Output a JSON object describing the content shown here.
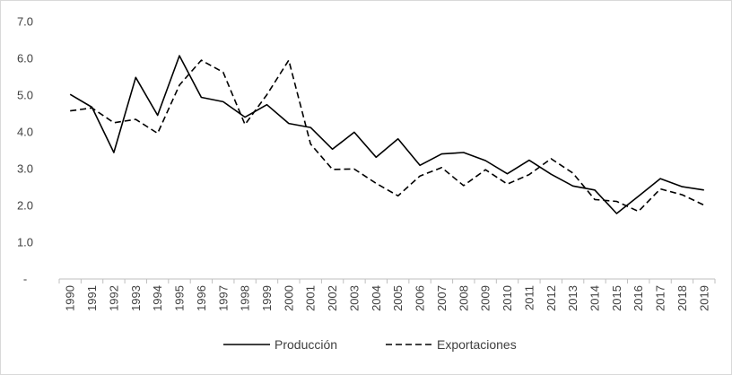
{
  "chart_data": {
    "type": "line",
    "title": "",
    "xlabel": "",
    "ylabel": "",
    "ylim": [
      0,
      7
    ],
    "y_ticks": [
      "-",
      "1.0",
      "2.0",
      "3.0",
      "4.0",
      "5.0",
      "6.0",
      "7.0"
    ],
    "grid": false,
    "legend_position": "bottom",
    "x": [
      "1990",
      "1991",
      "1992",
      "1993",
      "1994",
      "1995",
      "1996",
      "1997",
      "1998",
      "1999",
      "2000",
      "2001",
      "2002",
      "2003",
      "2004",
      "2005",
      "2006",
      "2007",
      "2008",
      "2009",
      "2010",
      "2011",
      "2012",
      "2013",
      "2014",
      "2015",
      "2016",
      "2017",
      "2018",
      "2019"
    ],
    "series": [
      {
        "name": "Producción",
        "style": "solid",
        "color": "#000000",
        "values": [
          5.02,
          4.67,
          3.44,
          5.48,
          4.45,
          6.07,
          4.94,
          4.82,
          4.4,
          4.74,
          4.23,
          4.12,
          3.53,
          3.99,
          3.31,
          3.81,
          3.09,
          3.4,
          3.44,
          3.22,
          2.86,
          3.23,
          2.85,
          2.53,
          2.42,
          1.78,
          2.25,
          2.73,
          2.51,
          2.42
        ]
      },
      {
        "name": "Exportaciones",
        "style": "dashed",
        "color": "#000000",
        "values": [
          4.57,
          4.65,
          4.25,
          4.34,
          3.96,
          5.27,
          5.95,
          5.62,
          4.2,
          5.01,
          5.95,
          3.67,
          2.98,
          2.99,
          2.6,
          2.26,
          2.8,
          3.03,
          2.54,
          2.97,
          2.58,
          2.84,
          3.27,
          2.88,
          2.16,
          2.11,
          1.84,
          2.45,
          2.29,
          2.01
        ]
      }
    ]
  }
}
